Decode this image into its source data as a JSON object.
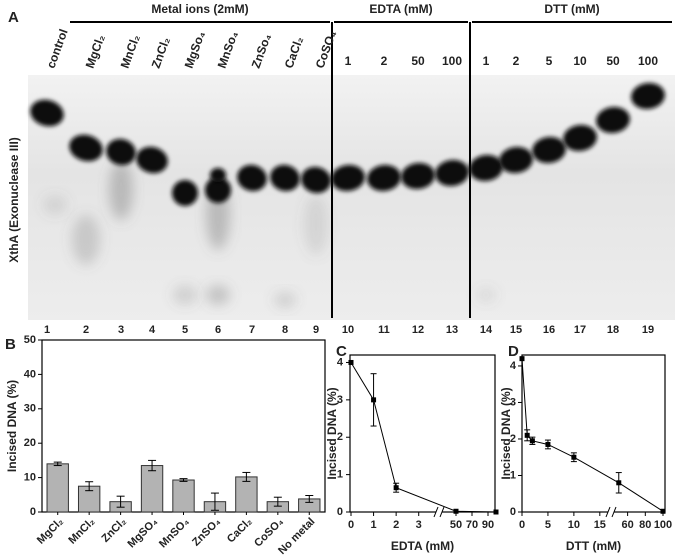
{
  "panel_a": {
    "label": "A",
    "y_label": "XthA (Exonuclease III)",
    "groups": [
      {
        "title": "Metal ions (2mM)",
        "lanes": [
          "control",
          "MgCl₂",
          "MnCl₂",
          "ZnCl₂",
          "MgSo₄",
          "MnSo₄",
          "ZnSo₄",
          "CaCl₂",
          "CoSO₄"
        ]
      },
      {
        "title": "EDTA (mM)",
        "lanes": [
          "1",
          "2",
          "50",
          "100"
        ]
      },
      {
        "title": "DTT (mM)",
        "lanes": [
          "1",
          "2",
          "5",
          "10",
          "50",
          "100"
        ]
      }
    ],
    "lane_numbers": [
      "1",
      "2",
      "3",
      "4",
      "5",
      "6",
      "7",
      "8",
      "9",
      "10",
      "11",
      "12",
      "13",
      "14",
      "15",
      "16",
      "17",
      "18",
      "19"
    ]
  },
  "chart_data": [
    {
      "panel": "B",
      "type": "bar",
      "y_label": "Incised DNA (%)",
      "categories": [
        "MgCl₂",
        "MnCl₂",
        "ZnCl₂",
        "MgSO₄",
        "MnSO₄",
        "ZnSO₄",
        "CaCl₂",
        "CoSO₄",
        "No metal"
      ],
      "values": [
        14,
        7.5,
        3,
        13.5,
        9.3,
        3,
        10.2,
        3,
        3.8
      ],
      "errors": [
        0.5,
        1.3,
        1.6,
        1.5,
        0.4,
        2.5,
        1.3,
        1.3,
        1
      ],
      "color": "#b3b3b3",
      "ylim": [
        0,
        50
      ],
      "yticks": [
        0,
        10,
        20,
        30,
        40,
        50
      ]
    },
    {
      "panel": "C",
      "type": "line",
      "y_label": "Incised DNA (%)",
      "x_label": "EDTA (mM)",
      "x": [
        0,
        1,
        2,
        50,
        100
      ],
      "values": [
        4.0,
        3.0,
        0.65,
        0.02,
        0.0
      ],
      "errors": [
        null,
        0.7,
        0.12,
        null,
        null
      ],
      "color": "#000000",
      "xlim": [
        [
          0,
          3.5
        ],
        [
          40,
          100
        ]
      ],
      "xticks": [
        0,
        1,
        2,
        3,
        50,
        70,
        90
      ],
      "ylim": [
        0,
        4.2
      ],
      "yticks": [
        0,
        1,
        2,
        3,
        4
      ]
    },
    {
      "panel": "D",
      "type": "line",
      "y_label": "Incised DNA (%)",
      "x_label": "DTT (mM)",
      "x": [
        0,
        1,
        2,
        5,
        10,
        50,
        100
      ],
      "values": [
        4.2,
        2.1,
        1.95,
        1.85,
        1.5,
        0.8,
        0.02
      ],
      "errors": [
        null,
        0.15,
        0.1,
        0.12,
        0.12,
        0.28,
        null
      ],
      "color": "#000000",
      "xlim": [
        [
          0,
          16
        ],
        [
          48,
          100
        ]
      ],
      "xticks": [
        0,
        5,
        10,
        15,
        60,
        80,
        100
      ],
      "ylim": [
        0,
        4.3
      ],
      "yticks": [
        0,
        1,
        2,
        3,
        4
      ]
    }
  ]
}
